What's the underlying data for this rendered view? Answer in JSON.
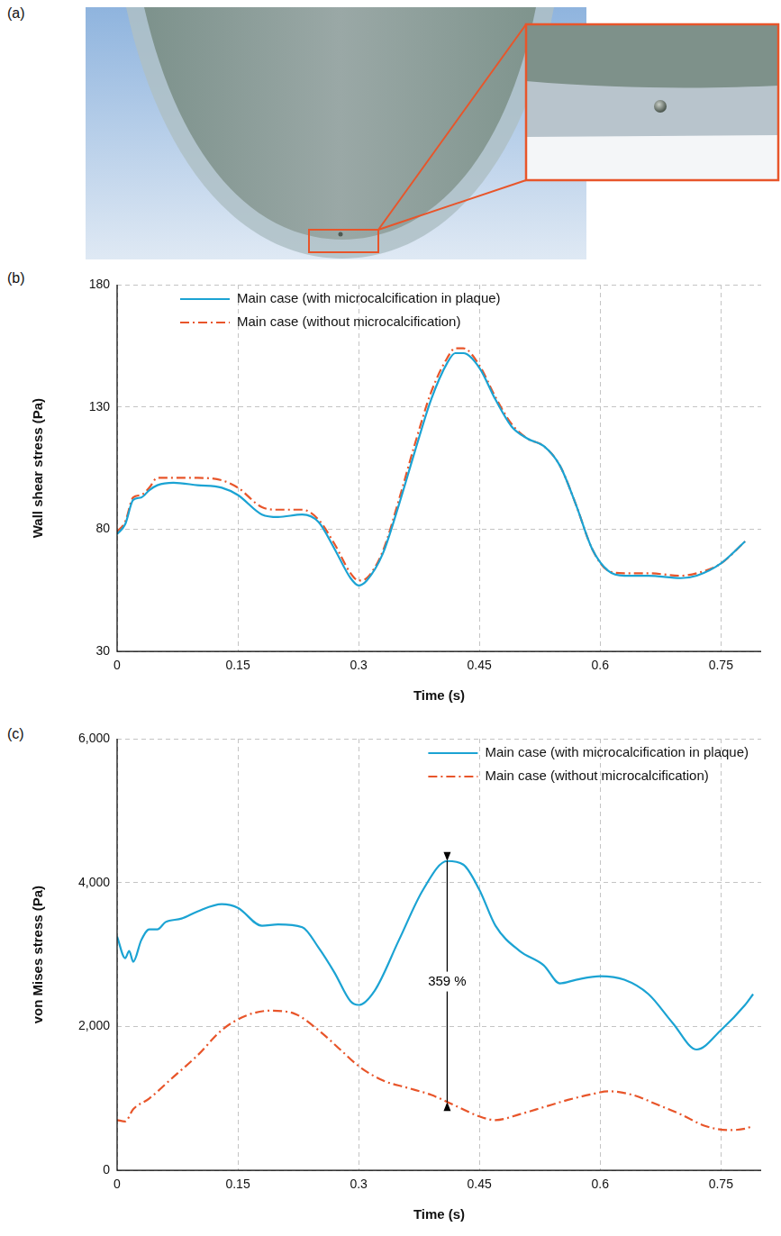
{
  "image_panel": {
    "panel_label": "(a)"
  },
  "chart_data": [
    {
      "panel_label": "(b)",
      "type": "line",
      "x_label": "Time (s)",
      "y_label": "Wall shear stress (Pa)",
      "xlim": [
        0,
        0.8
      ],
      "xticks": [
        0,
        0.15,
        0.3,
        0.45,
        0.6,
        0.75
      ],
      "ylim": [
        30,
        180
      ],
      "yticks": [
        30,
        80,
        130,
        180
      ],
      "grid": true,
      "legend": "top left",
      "series": [
        {
          "name": "Main case (with microcalcification in plaque)",
          "color": "#1ba3d3",
          "line_style": "solid",
          "x": [
            0,
            0.01,
            0.02,
            0.03,
            0.04,
            0.05,
            0.07,
            0.1,
            0.13,
            0.15,
            0.18,
            0.2,
            0.23,
            0.25,
            0.27,
            0.29,
            0.3,
            0.31,
            0.33,
            0.35,
            0.37,
            0.39,
            0.41,
            0.42,
            0.43,
            0.45,
            0.47,
            0.49,
            0.51,
            0.53,
            0.55,
            0.57,
            0.59,
            0.61,
            0.63,
            0.66,
            0.7,
            0.72,
            0.75,
            0.78
          ],
          "values": [
            78,
            82,
            92,
            93,
            96,
            98,
            99,
            98,
            97,
            94,
            86,
            85,
            86,
            83,
            72,
            60,
            57,
            59,
            70,
            90,
            112,
            133,
            148,
            152,
            152,
            146,
            133,
            122,
            117,
            114,
            106,
            90,
            72,
            63,
            61,
            61,
            60,
            61,
            66,
            75
          ]
        },
        {
          "name": "Main case (without microcalcification)",
          "color": "#e8552a",
          "line_style": "dashdot",
          "x": [
            0,
            0.01,
            0.02,
            0.03,
            0.04,
            0.05,
            0.07,
            0.1,
            0.13,
            0.15,
            0.18,
            0.2,
            0.23,
            0.25,
            0.27,
            0.29,
            0.3,
            0.31,
            0.33,
            0.35,
            0.37,
            0.39,
            0.41,
            0.42,
            0.43,
            0.45,
            0.47,
            0.49,
            0.51,
            0.53,
            0.55,
            0.57,
            0.59,
            0.61,
            0.63,
            0.66,
            0.7,
            0.72,
            0.75,
            0.78
          ],
          "values": [
            79,
            83,
            93,
            94,
            97,
            101,
            101,
            101,
            100,
            97,
            89,
            88,
            88,
            84,
            74,
            62,
            59,
            60,
            71,
            92,
            115,
            136,
            150,
            154,
            154,
            147,
            134,
            123,
            117,
            114,
            106,
            90,
            72,
            63,
            62,
            62,
            61,
            62,
            66,
            75
          ]
        }
      ]
    },
    {
      "panel_label": "(c)",
      "type": "line",
      "x_label": "Time (s)",
      "y_label": "von Mises stress (Pa)",
      "xlim": [
        0,
        0.8
      ],
      "xticks": [
        0,
        0.15,
        0.3,
        0.45,
        0.6,
        0.75
      ],
      "ylim": [
        0,
        6000
      ],
      "yticks": [
        0,
        {
          "value": 2000,
          "label": "2,000"
        },
        {
          "value": 4000,
          "label": "4,000"
        },
        {
          "value": 6000,
          "label": "6,000"
        }
      ],
      "grid": true,
      "legend": "top right",
      "annotations": [
        {
          "text": "359 %",
          "x": 0.41,
          "y_from": 950,
          "y_to": 4300
        }
      ],
      "series": [
        {
          "name": "Main case (with microcalcification in plaque)",
          "color": "#1ba3d3",
          "line_style": "solid",
          "x": [
            0,
            0.01,
            0.015,
            0.02,
            0.03,
            0.04,
            0.05,
            0.06,
            0.08,
            0.1,
            0.13,
            0.15,
            0.18,
            0.2,
            0.23,
            0.25,
            0.27,
            0.29,
            0.3,
            0.32,
            0.35,
            0.38,
            0.41,
            0.43,
            0.45,
            0.47,
            0.5,
            0.53,
            0.55,
            0.57,
            0.6,
            0.63,
            0.66,
            0.69,
            0.72,
            0.75,
            0.78,
            0.79
          ],
          "values": [
            3250,
            2950,
            3050,
            2900,
            3200,
            3350,
            3350,
            3450,
            3500,
            3600,
            3700,
            3650,
            3400,
            3420,
            3380,
            3100,
            2750,
            2350,
            2300,
            2500,
            3200,
            3900,
            4300,
            4250,
            3900,
            3400,
            3050,
            2850,
            2600,
            2650,
            2700,
            2650,
            2450,
            2050,
            1680,
            1950,
            2300,
            2450
          ]
        },
        {
          "name": "Main case (without microcalcification)",
          "color": "#e8552a",
          "line_style": "dashdot",
          "x": [
            0,
            0.01,
            0.02,
            0.04,
            0.07,
            0.1,
            0.13,
            0.16,
            0.19,
            0.22,
            0.25,
            0.28,
            0.3,
            0.33,
            0.36,
            0.39,
            0.42,
            0.45,
            0.47,
            0.5,
            0.53,
            0.56,
            0.59,
            0.61,
            0.64,
            0.67,
            0.7,
            0.73,
            0.76,
            0.78,
            0.79
          ],
          "values": [
            700,
            680,
            850,
            1000,
            1300,
            1600,
            1950,
            2150,
            2220,
            2180,
            1950,
            1650,
            1450,
            1250,
            1150,
            1050,
            900,
            750,
            700,
            780,
            880,
            980,
            1060,
            1100,
            1050,
            920,
            780,
            620,
            560,
            580,
            620
          ]
        }
      ]
    }
  ]
}
